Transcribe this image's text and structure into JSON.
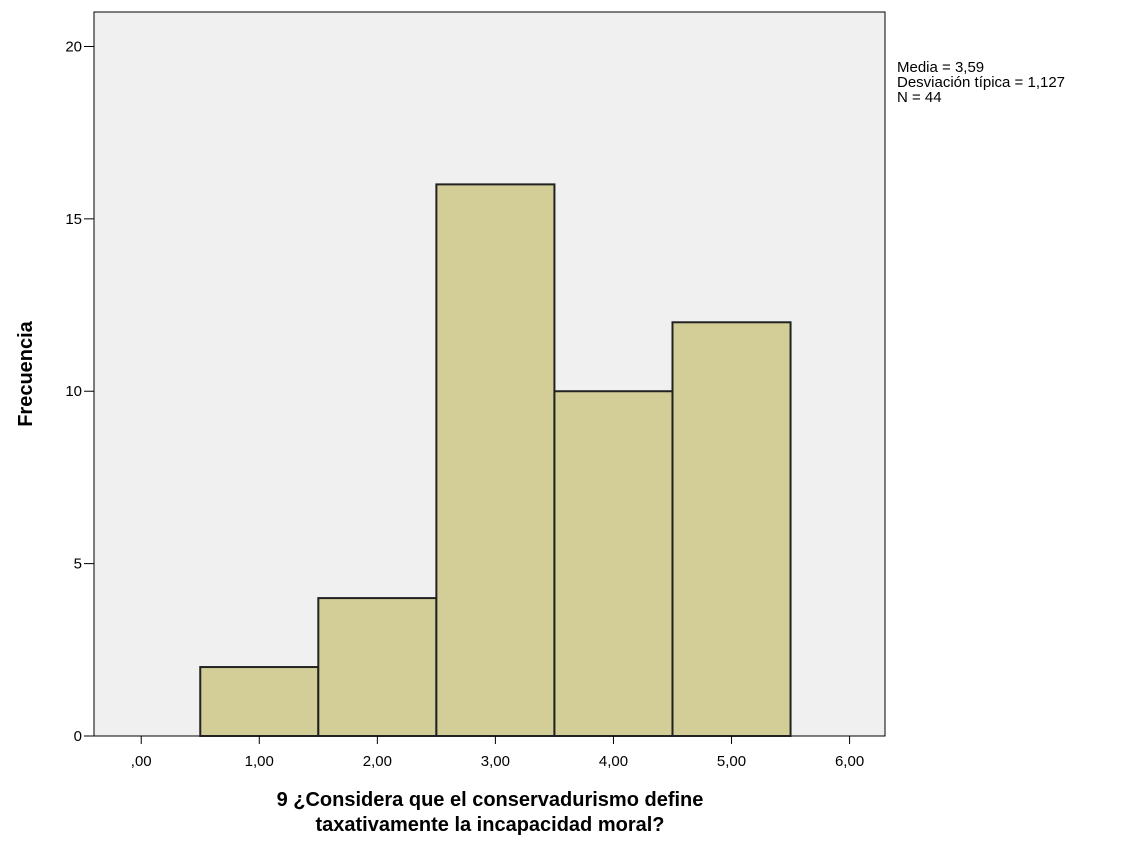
{
  "chart_data": {
    "type": "bar",
    "subtype": "histogram",
    "title": "",
    "xlabel_lines": [
      "9 ¿Considera que el conservadurismo define",
      "taxativamente la incapacidad moral?"
    ],
    "ylabel": "Frecuencia",
    "xlim": [
      -0.4,
      6.3
    ],
    "ylim": [
      0,
      21
    ],
    "x_ticks": [
      {
        "value": 0,
        "label": ",00"
      },
      {
        "value": 1,
        "label": "1,00"
      },
      {
        "value": 2,
        "label": "2,00"
      },
      {
        "value": 3,
        "label": "3,00"
      },
      {
        "value": 4,
        "label": "4,00"
      },
      {
        "value": 5,
        "label": "5,00"
      },
      {
        "value": 6,
        "label": "6,00"
      }
    ],
    "y_ticks": [
      {
        "value": 0,
        "label": "0"
      },
      {
        "value": 5,
        "label": "5"
      },
      {
        "value": 10,
        "label": "10"
      },
      {
        "value": 15,
        "label": "15"
      },
      {
        "value": 20,
        "label": "20"
      }
    ],
    "bins": [
      {
        "start": 0.5,
        "end": 1.5,
        "count": 2
      },
      {
        "start": 1.5,
        "end": 2.5,
        "count": 4
      },
      {
        "start": 2.5,
        "end": 3.5,
        "count": 16
      },
      {
        "start": 3.5,
        "end": 4.5,
        "count": 10
      },
      {
        "start": 4.5,
        "end": 5.5,
        "count": 12
      }
    ],
    "stats": [
      "Media = 3,59",
      "Desviación típica = 1,127",
      "N = 44"
    ],
    "grid": false,
    "legend": "none",
    "colors": {
      "plot_background": "#f0f0f0",
      "bar_fill": "#d3ce97",
      "bar_stroke": "#222222",
      "axis": "#000000"
    }
  }
}
